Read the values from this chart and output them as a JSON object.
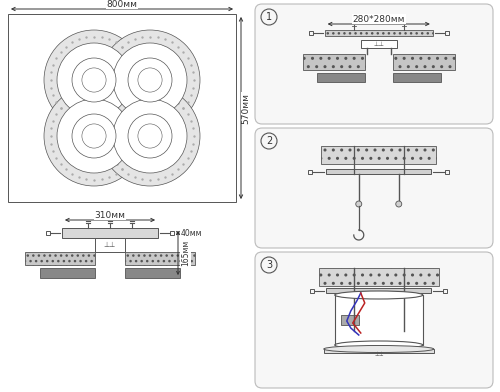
{
  "bg_color": "#ffffff",
  "line_color": "#555555",
  "dark_color": "#333333",
  "dim_color": "#444444",
  "blue_wire": "#3333bb",
  "red_wire": "#bb2222",
  "fig_width": 5.0,
  "fig_height": 3.92,
  "label_800": "800мм",
  "label_570": "570мм",
  "label_310": "310мм",
  "label_40": "40мм",
  "label_165": "165мм",
  "label_280": "280*280мм",
  "step1": "1",
  "step2": "2",
  "step3": "3"
}
